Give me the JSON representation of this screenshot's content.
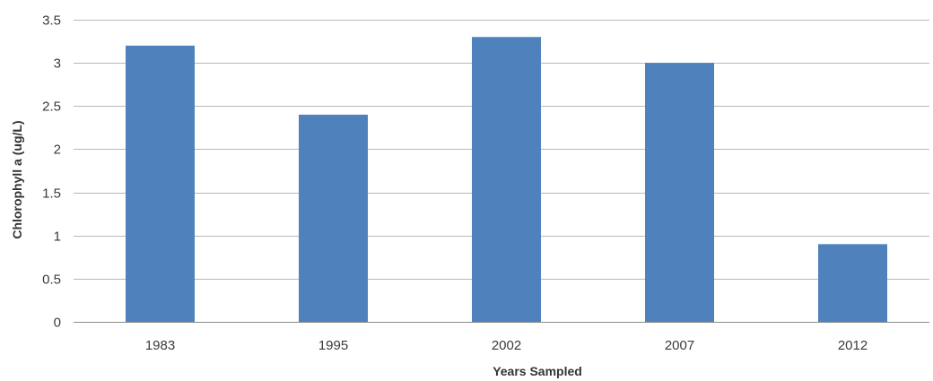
{
  "chart_data": {
    "type": "bar",
    "title": "",
    "xlabel": "Years Sampled",
    "ylabel": "Chlorophyll a (ug/L)",
    "categories": [
      "1983",
      "1995",
      "2002",
      "2007",
      "2012"
    ],
    "values": [
      3.2,
      2.4,
      3.3,
      3.0,
      0.9
    ],
    "ylim": [
      0,
      3.5
    ],
    "y_ticks": [
      0,
      0.5,
      1,
      1.5,
      2,
      2.5,
      3,
      3.5
    ],
    "y_tick_labels": [
      "0",
      "0.5",
      "1",
      "1.5",
      "2",
      "2.5",
      "3",
      "3.5"
    ],
    "grid": true,
    "legend": "none",
    "bar_color": "#4f81bd"
  }
}
